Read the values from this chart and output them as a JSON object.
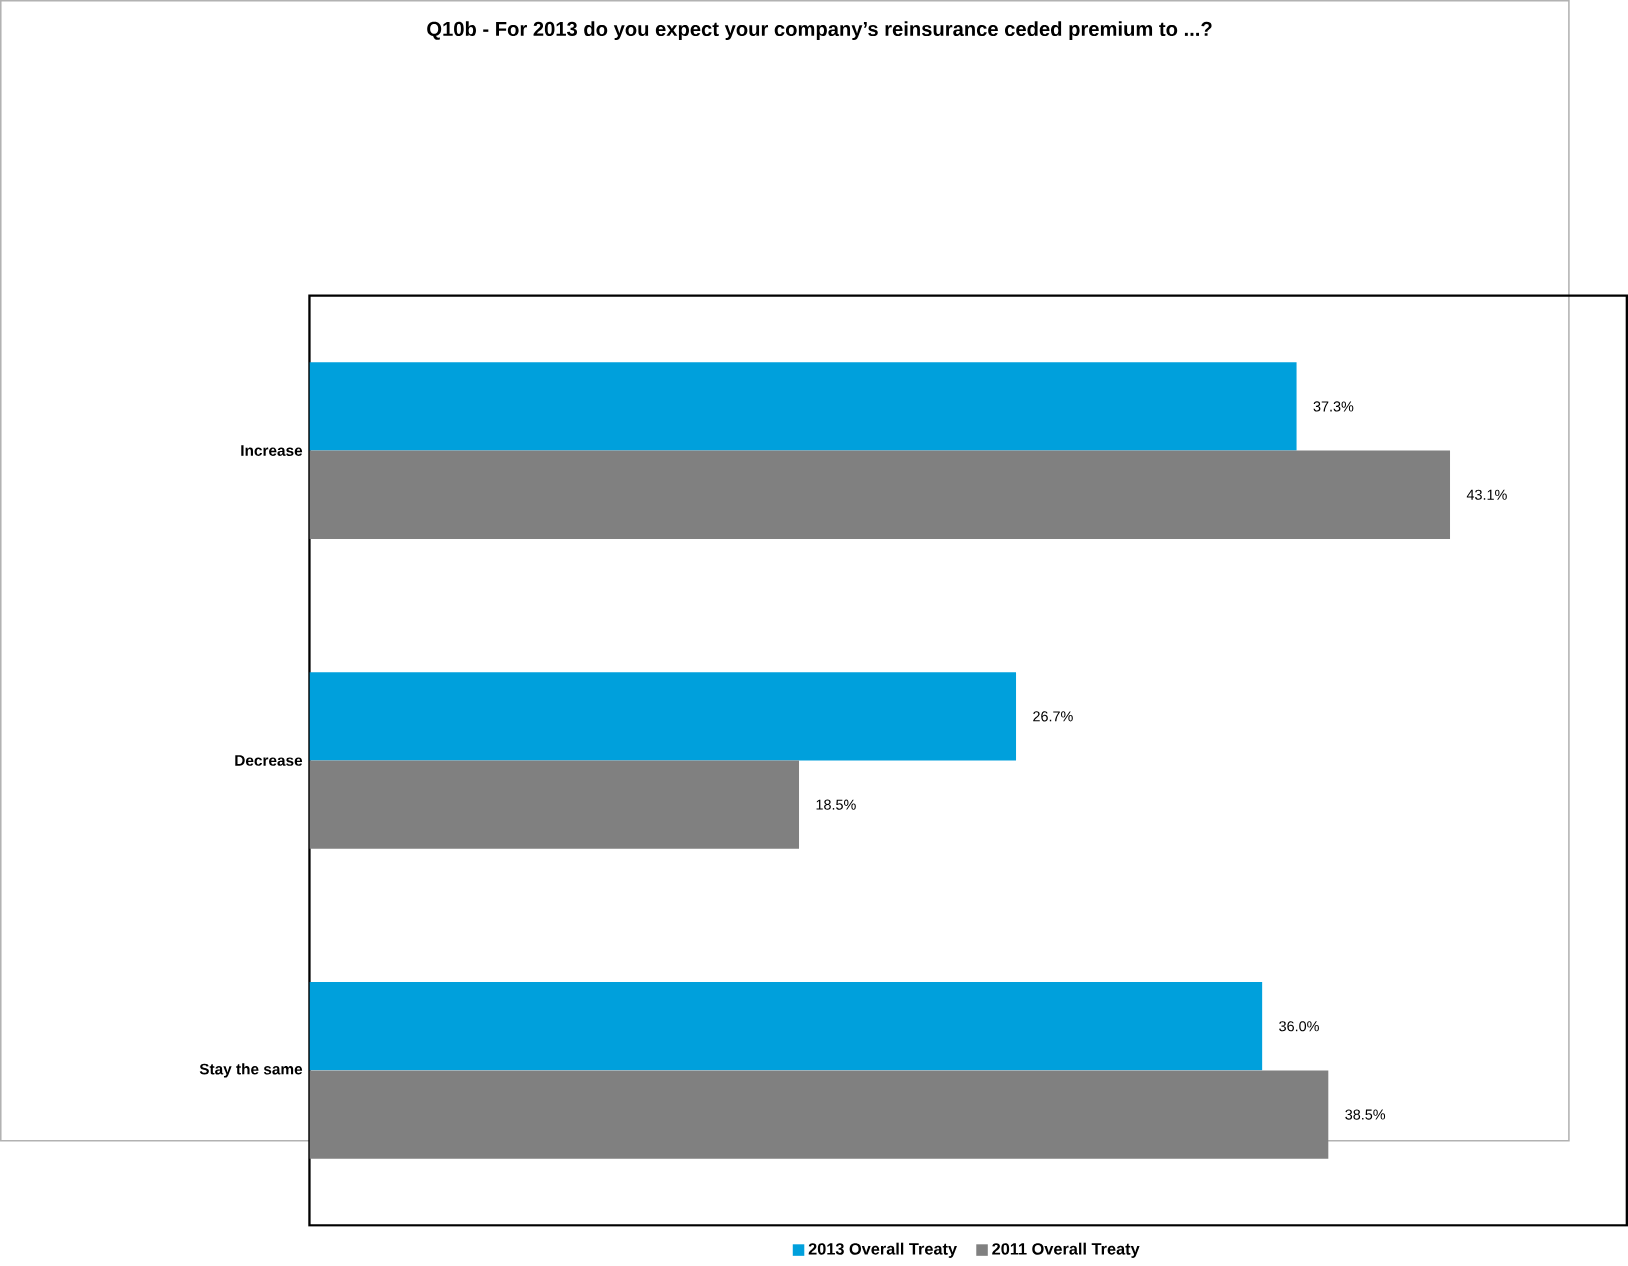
{
  "chart_data": {
    "type": "bar",
    "orientation": "horizontal",
    "title": "Q10b - For 2013 do you expect your company’s reinsurance ceded premium to ...?",
    "categories": [
      "Increase",
      "Decrease",
      "Stay the same"
    ],
    "series": [
      {
        "name": "2013 Overall Treaty",
        "color": "#00a0dc",
        "values": [
          37.3,
          26.7,
          36.0
        ],
        "value_labels": [
          "37.3%",
          "26.7%",
          "36.0%"
        ]
      },
      {
        "name": "2011 Overall Treaty",
        "color": "#808080",
        "values": [
          43.1,
          18.5,
          38.5
        ],
        "value_labels": [
          "43.1%",
          "18.5%",
          "38.5%"
        ]
      }
    ],
    "legend": "bottom"
  }
}
